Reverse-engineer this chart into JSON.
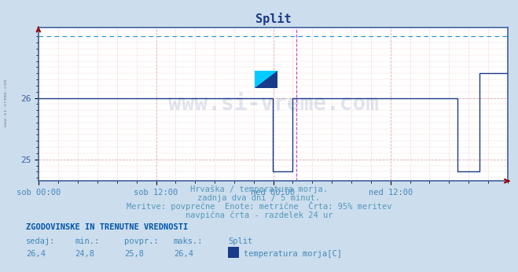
{
  "title": "Split",
  "bg_color": "#ccdded",
  "plot_bg_color": "#ffffff",
  "line_color": "#1a3a8a",
  "max_line_color": "#1a90d0",
  "vline_color": "#cc44cc",
  "border_color": "#4060a0",
  "arrow_color": "#990000",
  "xlabel_color": "#4488bb",
  "ylabel_color": "#4060a0",
  "footer_color": "#5599bb",
  "bold_footer_color": "#0055aa",
  "legend_box_color": "#1a3a8a",
  "watermark_color": "#1a3a8a",
  "grid_major_color": "#ddaaaa",
  "grid_minor_color": "#f0cccc",
  "ylim": [
    24.65,
    27.15
  ],
  "ytick_vals": [
    25.0,
    26.0
  ],
  "xlim": [
    0,
    576
  ],
  "xtick_positions": [
    0,
    144,
    288,
    432,
    576
  ],
  "xtick_labels": [
    "sob 00:00",
    "sob 12:00",
    "ned 00:00",
    "ned 12:00",
    ""
  ],
  "minor_xtick_step": 24,
  "vline_x": 316,
  "max_dashed_y": 27.0,
  "watermark": "www.si-vreme.com",
  "subtitle1": "Hrvaška / temperatura morja.",
  "subtitle2": "zadnja dva dni / 5 minut.",
  "subtitle3": "Meritve: povprečne  Enote: metrične  Črta: 95% meritev",
  "subtitle4": "navpična črta - razdelek 24 ur",
  "footer_bold": "ZGODOVINSKE IN TRENUTNE VREDNOSTI",
  "footer_row1": [
    "sedaj:",
    "min.:",
    "povpr.:",
    "maks.:",
    "Split"
  ],
  "footer_row2": [
    "26,4",
    "24,8",
    "25,8",
    "26,4",
    "temperatura morja[C]"
  ],
  "left_watermark": "www.si-vreme.com",
  "segments": [
    {
      "x_start": 0,
      "x_end": 286,
      "y": 26.0
    },
    {
      "x_start": 286,
      "x_end": 287,
      "y": 26.0
    },
    {
      "x_start": 287,
      "x_end": 288,
      "y": 24.8
    },
    {
      "x_start": 288,
      "x_end": 312,
      "y": 24.8
    },
    {
      "x_start": 312,
      "x_end": 313,
      "y": 26.0
    },
    {
      "x_start": 313,
      "x_end": 514,
      "y": 26.0
    },
    {
      "x_start": 514,
      "x_end": 515,
      "y": 24.8
    },
    {
      "x_start": 515,
      "x_end": 541,
      "y": 24.8
    },
    {
      "x_start": 541,
      "x_end": 542,
      "y": 26.4
    },
    {
      "x_start": 542,
      "x_end": 576,
      "y": 26.4
    }
  ]
}
